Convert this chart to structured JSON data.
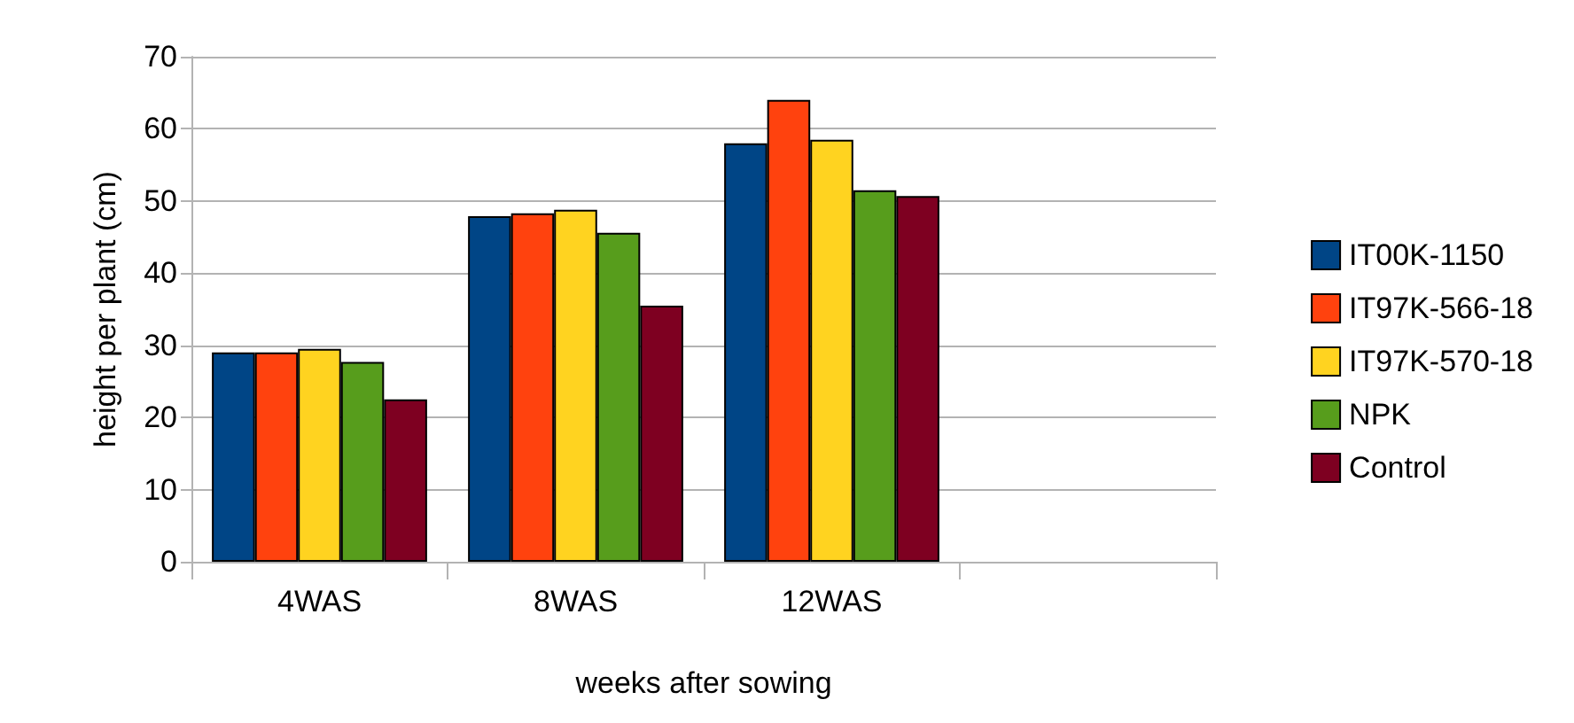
{
  "chart_data": {
    "type": "bar",
    "xlabel": "weeks after sowing",
    "ylabel": "height per plant (cm)",
    "categories": [
      "4WAS",
      "8WAS",
      "12WAS",
      null
    ],
    "series": [
      {
        "name": "IT00K-1150",
        "color": "#004586",
        "values": [
          29,
          47.9,
          58,
          null
        ]
      },
      {
        "name": "IT97K-566-18",
        "color": "#ff420e",
        "values": [
          29,
          48.3,
          64,
          null
        ]
      },
      {
        "name": "IT97K-570-18",
        "color": "#ffd320",
        "values": [
          29.5,
          48.8,
          58.5,
          null
        ]
      },
      {
        "name": "NPK",
        "color": "#579d1c",
        "values": [
          27.7,
          45.6,
          51.5,
          null
        ]
      },
      {
        "name": "Control",
        "color": "#7e0021",
        "values": [
          22.5,
          35.5,
          50.7,
          null
        ]
      }
    ],
    "ylim": [
      0,
      70
    ],
    "yticks": [
      0,
      10,
      20,
      30,
      40,
      50,
      60,
      70
    ],
    "grid": "y",
    "legend": "right"
  }
}
